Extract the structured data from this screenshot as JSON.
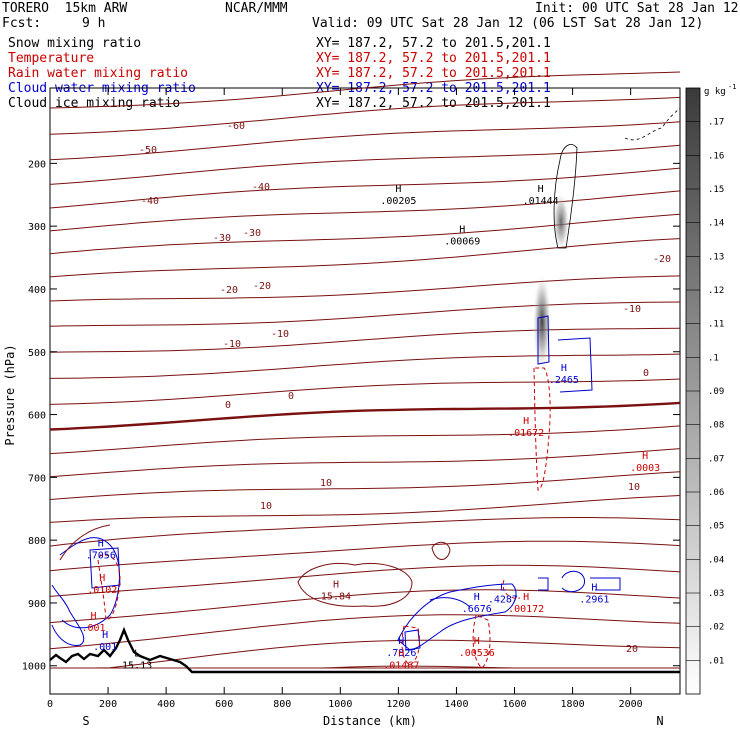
{
  "header": {
    "model": "TORERO  15km ARW",
    "org": "NCAR/MMM",
    "init": "Init: 00 UTC Sat 28 Jan 12",
    "fcst_label": "Fcst:",
    "fcst_value": "9 h",
    "valid": "Valid: 09 UTC Sat 28 Jan 12 (06 LST Sat 28 Jan 12)",
    "xy": "XY= 187.2, 57.2 to 201.5,201.1"
  },
  "legend": [
    {
      "name": "Snow mixing ratio",
      "color": "#000000"
    },
    {
      "name": "Temperature",
      "color": "#cc0000"
    },
    {
      "name": "Rain water mixing ratio",
      "color": "#cc0000"
    },
    {
      "name": "Cloud water mixing ratio",
      "color": "#0000cc"
    },
    {
      "name": "Cloud ice mixing ratio",
      "color": "#000000"
    }
  ],
  "chart_data": {
    "type": "contour",
    "xlabel": "Distance (km)",
    "ylabel": "Pressure (hPa)",
    "x_ticks": [
      0,
      200,
      400,
      600,
      800,
      1000,
      1200,
      1400,
      1600,
      1800,
      2000
    ],
    "xlim": [
      0,
      2170
    ],
    "y_ticks": [
      200,
      300,
      400,
      500,
      600,
      700,
      800,
      900,
      1000
    ],
    "ylim": [
      1045,
      80
    ],
    "x_end_labels": {
      "left": "S",
      "right": "N"
    },
    "colorbar": {
      "unit": "g kg",
      "unit_exp": "-1",
      "ticks": [
        ".01",
        ".02",
        ".03",
        ".04",
        ".05",
        ".06",
        ".07",
        ".08",
        ".09",
        ".1",
        ".11",
        ".12",
        ".13",
        ".14",
        ".15",
        ".16",
        ".17"
      ]
    },
    "temperature_labels": [
      "-60",
      "-50",
      "-40",
      "-40",
      "-30",
      "-30",
      "-20",
      "-20",
      "-20",
      "-10",
      "-10",
      "-10",
      "0",
      "0",
      "0",
      "10",
      "10",
      "10",
      "20"
    ],
    "maxima": [
      {
        "kind": "H",
        "value": ".00205",
        "color": "#000000",
        "x": 1200,
        "p": 255
      },
      {
        "kind": "H",
        "value": ".01444",
        "color": "#000000",
        "x": 1690,
        "p": 255
      },
      {
        "kind": "H",
        "value": ".00069",
        "color": "#000000",
        "x": 1420,
        "p": 320
      },
      {
        "kind": "H",
        "value": ".2465",
        "color": "#0000cc",
        "x": 1770,
        "p": 540
      },
      {
        "kind": "H",
        "value": ".01672",
        "color": "#cc0000",
        "x": 1640,
        "p": 625
      },
      {
        "kind": "H",
        "value": ".0003",
        "color": "#cc0000",
        "x": 2050,
        "p": 680
      },
      {
        "kind": "H",
        "value": ".7056",
        "color": "#0000cc",
        "x": 175,
        "p": 820
      },
      {
        "kind": "H",
        "value": ".0102",
        "color": "#cc0000",
        "x": 180,
        "p": 875
      },
      {
        "kind": "H",
        "value": "15.84",
        "color": "#7a1010",
        "x": 985,
        "p": 885
      },
      {
        "kind": "L",
        "value": ".4287",
        "color": "#0000cc",
        "x": 1560,
        "p": 890
      },
      {
        "kind": "H",
        "value": ".00172",
        "color": "#cc0000",
        "x": 1640,
        "p": 905
      },
      {
        "kind": "H",
        "value": ".6676",
        "color": "#0000cc",
        "x": 1470,
        "p": 905
      },
      {
        "kind": "H",
        "value": ".2961",
        "color": "#0000cc",
        "x": 1875,
        "p": 890
      },
      {
        "kind": "H",
        "value": ".001",
        "color": "#cc0000",
        "x": 150,
        "p": 935
      },
      {
        "kind": "H",
        "value": ".001",
        "color": "#0000cc",
        "x": 190,
        "p": 965
      },
      {
        "kind": "H",
        "value": ".7826",
        "color": "#0000cc",
        "x": 1210,
        "p": 975
      },
      {
        "kind": "H",
        "value": ".00536",
        "color": "#cc0000",
        "x": 1470,
        "p": 975
      },
      {
        "kind": "H",
        "value": ".01467",
        "color": "#cc0000",
        "x": 1210,
        "p": 995
      },
      {
        "kind": "L",
        "value": "15.13",
        "color": "#000000",
        "x": 300,
        "p": 995
      }
    ],
    "colors": {
      "temperature": "#7a1010",
      "freezing_line": "#6e0a0a",
      "rain": "#cc0000",
      "cloud_water": "#0000cc",
      "snow": "#000000"
    }
  }
}
